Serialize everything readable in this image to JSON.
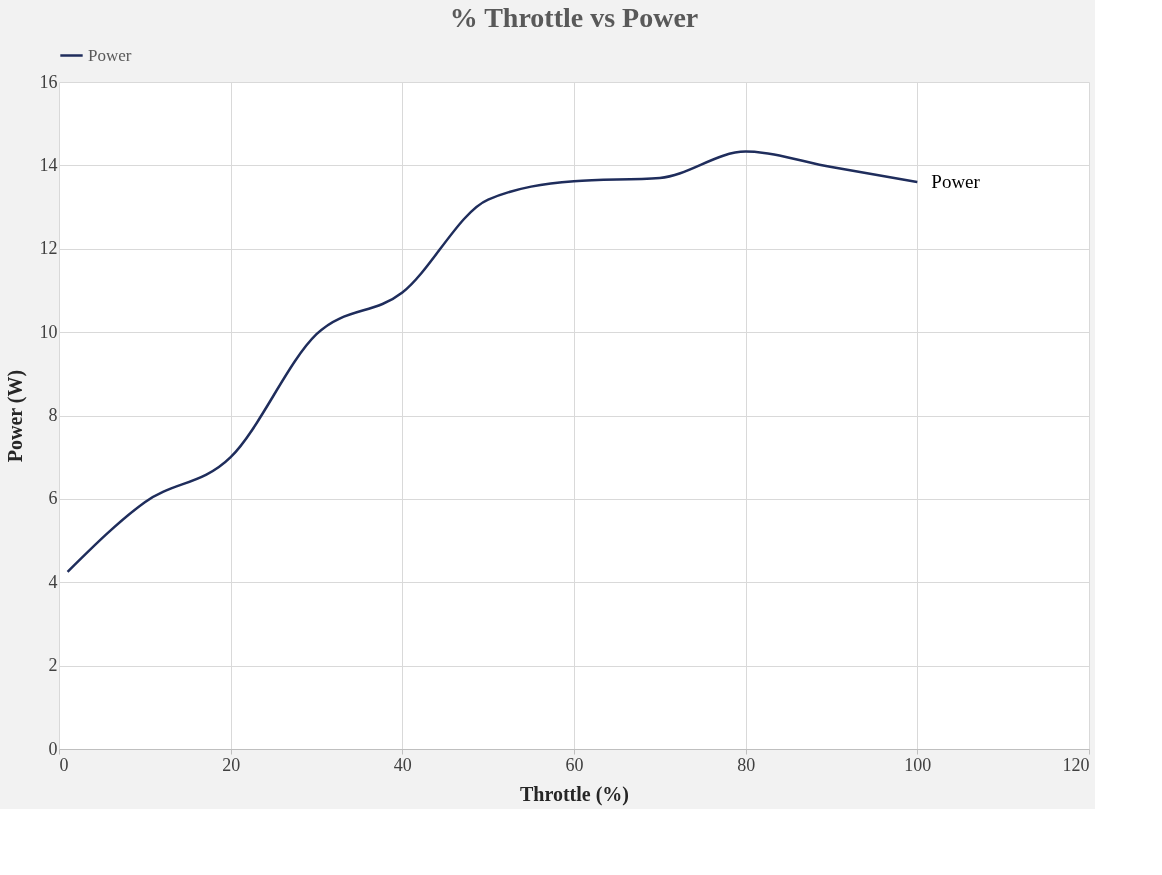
{
  "chart_data": {
    "type": "line",
    "title": "% Throttle vs Power",
    "xlabel": "Throttle (%)",
    "ylabel": "Power (W)",
    "x": [
      1,
      10,
      20,
      30,
      40,
      50,
      60,
      70,
      80,
      90,
      100
    ],
    "series": [
      {
        "name": "Power",
        "color": "#1f2d5c",
        "values": [
          4.25,
          5.92,
          7.0,
          9.95,
          10.95,
          13.18,
          13.62,
          13.7,
          14.33,
          13.96,
          13.6
        ]
      }
    ],
    "xlim": [
      0,
      120
    ],
    "xticks": [
      0,
      20,
      40,
      60,
      80,
      100,
      120
    ],
    "ylim": [
      0,
      16
    ],
    "yticks": [
      0,
      2,
      4,
      6,
      8,
      10,
      12,
      14,
      16
    ],
    "grid": true,
    "legend": "top",
    "marker": "none",
    "line_style": "solid"
  }
}
